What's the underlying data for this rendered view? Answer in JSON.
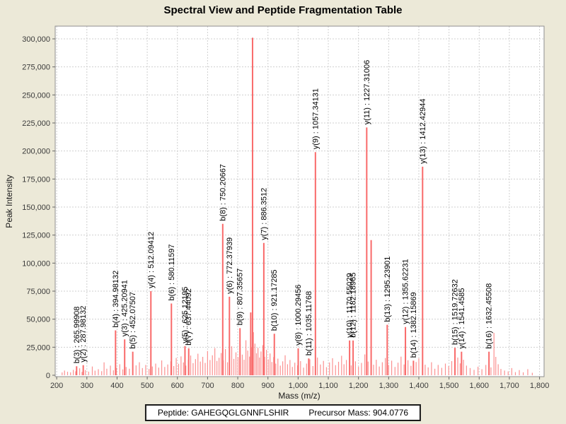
{
  "page": {
    "background": "#ece9d8"
  },
  "title": "Spectral View and Peptide Fragmentation Table",
  "footer": {
    "peptide_label": "Peptide: GAHEGQGLGNNFLSHIR",
    "precursor_label": "Precursor Mass: 904.0776"
  },
  "chart_data": {
    "type": "bar",
    "title": "Spectral View and Peptide Fragmentation Table",
    "xlabel": "Mass (m/z)",
    "ylabel": "Peak Intensity",
    "xlim": [
      195,
      1815
    ],
    "ylim": [
      0,
      310000
    ],
    "grid": true,
    "legend_position": "none",
    "colors": {
      "peak_labeled": "#f96a6a",
      "peak_noise": "#fb9090",
      "grid": "#cfcfcf",
      "plot_border": "#8f8f8f",
      "tick_text": "#3a3a3a",
      "label_text": "#000000",
      "plot_bg": "#ffffff"
    },
    "x_ticks": [
      {
        "v": 200,
        "label": "200"
      },
      {
        "v": 300,
        "label": "300"
      },
      {
        "v": 400,
        "label": "400"
      },
      {
        "v": 500,
        "label": "500"
      },
      {
        "v": 600,
        "label": "600"
      },
      {
        "v": 700,
        "label": "700"
      },
      {
        "v": 800,
        "label": "800"
      },
      {
        "v": 900,
        "label": "900"
      },
      {
        "v": 1000,
        "label": "1,000"
      },
      {
        "v": 1100,
        "label": "1,100"
      },
      {
        "v": 1200,
        "label": "1,200"
      },
      {
        "v": 1300,
        "label": "1,300"
      },
      {
        "v": 1400,
        "label": "1,400"
      },
      {
        "v": 1500,
        "label": "1,500"
      },
      {
        "v": 1600,
        "label": "1,600"
      },
      {
        "v": 1700,
        "label": "1,700"
      },
      {
        "v": 1800,
        "label": "1,800"
      }
    ],
    "y_ticks": [
      {
        "v": 0,
        "label": "0"
      },
      {
        "v": 25000,
        "label": "25,000"
      },
      {
        "v": 50000,
        "label": "50,000"
      },
      {
        "v": 75000,
        "label": "75,000"
      },
      {
        "v": 100000,
        "label": "100,000"
      },
      {
        "v": 125000,
        "label": "125,000"
      },
      {
        "v": 150000,
        "label": "150,000"
      },
      {
        "v": 175000,
        "label": "175,000"
      },
      {
        "v": 200000,
        "label": "200,000"
      },
      {
        "v": 225000,
        "label": "225,000"
      },
      {
        "v": 250000,
        "label": "250,000"
      },
      {
        "v": 275000,
        "label": "275,000"
      },
      {
        "v": 300000,
        "label": "300,000"
      }
    ],
    "labeled_peaks": [
      {
        "label": "b(3) : 265.99908",
        "mz": 265.99908,
        "intensity": 8000
      },
      {
        "label": "y(2) : 287.98132",
        "mz": 287.98132,
        "intensity": 9000
      },
      {
        "label": "b(4) : 394.98132",
        "mz": 394.98132,
        "intensity": 40000
      },
      {
        "label": "y(3) : 425.20941",
        "mz": 425.20941,
        "intensity": 32000
      },
      {
        "label": "b(5) : 452.07507",
        "mz": 452.07507,
        "intensity": 21000
      },
      {
        "label": "y(4) : 512.09412",
        "mz": 512.09412,
        "intensity": 75000
      },
      {
        "label": "b(6) : 580.11597",
        "mz": 580.11597,
        "intensity": 64000
      },
      {
        "label": "y(5) : 625.12195",
        "mz": 625.12195,
        "intensity": 26000
      },
      {
        "label": "b(7) : 637.44092",
        "mz": 637.44092,
        "intensity": 24000
      },
      {
        "label": "b(8) : 750.20667",
        "mz": 750.20667,
        "intensity": 135000
      },
      {
        "label": "y(6) : 772.37939",
        "mz": 772.37939,
        "intensity": 70000
      },
      {
        "label": "b(9) : 807.35657",
        "mz": 807.35657,
        "intensity": 42000
      },
      {
        "label": "y(7) : 886.3512",
        "mz": 886.3512,
        "intensity": 118000
      },
      {
        "label": "b(10) : 921.17285",
        "mz": 921.17285,
        "intensity": 37000
      },
      {
        "label": "y(8) : 1000.29456",
        "mz": 1000.29456,
        "intensity": 24000
      },
      {
        "label": "b(11) : 1035.11768",
        "mz": 1035.11768,
        "intensity": 15000
      },
      {
        "label": "y(9) : 1057.34131",
        "mz": 1057.34131,
        "intensity": 199000
      },
      {
        "label": "y(10) : 1170.55029",
        "mz": 1170.55029,
        "intensity": 31000
      },
      {
        "label": "b(12) : 1182.18965",
        "mz": 1182.18965,
        "intensity": 31000
      },
      {
        "label": "y(11) : 1227.31006",
        "mz": 1227.31006,
        "intensity": 221000
      },
      {
        "label": "b(13) : 1295.23901",
        "mz": 1295.23901,
        "intensity": 45000
      },
      {
        "label": "y(12) : 1355.62231",
        "mz": 1355.62231,
        "intensity": 43000
      },
      {
        "label": "b(14) : 1382.15869",
        "mz": 1382.15869,
        "intensity": 13000
      },
      {
        "label": "y(13) : 1412.42944",
        "mz": 1412.42944,
        "intensity": 186000
      },
      {
        "label": "b(15) : 1519.72632",
        "mz": 1519.72632,
        "intensity": 24500
      },
      {
        "label": "y(14) : 1541.4585",
        "mz": 1541.4585,
        "intensity": 21000
      },
      {
        "label": "b(16) : 1632.45508",
        "mz": 1632.45508,
        "intensity": 21000
      }
    ],
    "unlabeled_major_peaks": [
      [
        849,
        301000
      ],
      [
        1242,
        120500
      ]
    ],
    "noise_peaks": [
      [
        218,
        2500
      ],
      [
        226,
        4200
      ],
      [
        236,
        3100
      ],
      [
        246,
        2600
      ],
      [
        255,
        4800
      ],
      [
        263,
        3500
      ],
      [
        276,
        6200
      ],
      [
        284,
        3000
      ],
      [
        295,
        4600
      ],
      [
        306,
        3200
      ],
      [
        318,
        7800
      ],
      [
        327,
        4100
      ],
      [
        338,
        5400
      ],
      [
        349,
        3600
      ],
      [
        357,
        11500
      ],
      [
        366,
        5800
      ],
      [
        378,
        8600
      ],
      [
        388,
        4400
      ],
      [
        398,
        6600
      ],
      [
        409,
        9800
      ],
      [
        419,
        5200
      ],
      [
        430,
        7400
      ],
      [
        441,
        5800
      ],
      [
        452,
        4400
      ],
      [
        463,
        8800
      ],
      [
        474,
        11600
      ],
      [
        484,
        6400
      ],
      [
        495,
        9200
      ],
      [
        506,
        5600
      ],
      [
        517,
        7800
      ],
      [
        528,
        10400
      ],
      [
        538,
        6800
      ],
      [
        548,
        13200
      ],
      [
        558,
        7400
      ],
      [
        568,
        9600
      ],
      [
        578,
        12400
      ],
      [
        588,
        8200
      ],
      [
        596,
        15400
      ],
      [
        604,
        10200
      ],
      [
        612,
        16800
      ],
      [
        620,
        11400
      ],
      [
        628,
        8600
      ],
      [
        636,
        13800
      ],
      [
        644,
        17600
      ],
      [
        652,
        10800
      ],
      [
        660,
        14400
      ],
      [
        668,
        19200
      ],
      [
        676,
        12200
      ],
      [
        684,
        16400
      ],
      [
        692,
        11000
      ],
      [
        700,
        21600
      ],
      [
        708,
        13600
      ],
      [
        716,
        17800
      ],
      [
        724,
        24200
      ],
      [
        731,
        12800
      ],
      [
        738,
        15600
      ],
      [
        745,
        19800
      ],
      [
        752,
        13400
      ],
      [
        759,
        23400
      ],
      [
        766,
        11600
      ],
      [
        773,
        17200
      ],
      [
        780,
        25800
      ],
      [
        787,
        14600
      ],
      [
        794,
        20400
      ],
      [
        801,
        16200
      ],
      [
        808,
        27600
      ],
      [
        815,
        18400
      ],
      [
        821,
        13800
      ],
      [
        827,
        31200
      ],
      [
        833,
        22000
      ],
      [
        839,
        16600
      ],
      [
        843,
        56000
      ],
      [
        847,
        24800
      ],
      [
        852,
        38400
      ],
      [
        857,
        28200
      ],
      [
        862,
        19600
      ],
      [
        867,
        24400
      ],
      [
        872,
        15800
      ],
      [
        877,
        21200
      ],
      [
        883,
        26800
      ],
      [
        889,
        16400
      ],
      [
        895,
        22600
      ],
      [
        901,
        14200
      ],
      [
        907,
        19400
      ],
      [
        913,
        11800
      ],
      [
        919,
        16200
      ],
      [
        926,
        10400
      ],
      [
        933,
        14800
      ],
      [
        941,
        8600
      ],
      [
        949,
        12400
      ],
      [
        957,
        17800
      ],
      [
        965,
        9800
      ],
      [
        973,
        13600
      ],
      [
        981,
        7400
      ],
      [
        989,
        11200
      ],
      [
        998,
        8800
      ],
      [
        1008,
        12600
      ],
      [
        1018,
        6800
      ],
      [
        1028,
        10400
      ],
      [
        1039,
        14200
      ],
      [
        1049,
        8200
      ],
      [
        1064,
        15800
      ],
      [
        1074,
        9600
      ],
      [
        1084,
        12800
      ],
      [
        1094,
        7200
      ],
      [
        1104,
        11400
      ],
      [
        1114,
        15200
      ],
      [
        1124,
        9000
      ],
      [
        1134,
        12000
      ],
      [
        1144,
        17400
      ],
      [
        1152,
        9800
      ],
      [
        1160,
        13600
      ],
      [
        1176,
        8800
      ],
      [
        1190,
        12400
      ],
      [
        1200,
        7600
      ],
      [
        1210,
        11000
      ],
      [
        1221,
        18600
      ],
      [
        1232,
        12200
      ],
      [
        1250,
        9400
      ],
      [
        1259,
        13800
      ],
      [
        1269,
        7800
      ],
      [
        1279,
        11600
      ],
      [
        1289,
        15400
      ],
      [
        1300,
        9200
      ],
      [
        1310,
        13000
      ],
      [
        1321,
        7400
      ],
      [
        1331,
        11200
      ],
      [
        1341,
        16600
      ],
      [
        1351,
        9600
      ],
      [
        1364,
        13400
      ],
      [
        1374,
        8400
      ],
      [
        1391,
        11800
      ],
      [
        1400,
        15000
      ],
      [
        1421,
        9400
      ],
      [
        1431,
        7000
      ],
      [
        1442,
        11600
      ],
      [
        1453,
        5800
      ],
      [
        1464,
        9200
      ],
      [
        1476,
        6600
      ],
      [
        1488,
        10400
      ],
      [
        1499,
        8200
      ],
      [
        1509,
        12600
      ],
      [
        1529,
        15800
      ],
      [
        1537,
        10600
      ],
      [
        1548,
        13800
      ],
      [
        1558,
        8600
      ],
      [
        1570,
        6400
      ],
      [
        1583,
        4800
      ],
      [
        1596,
        7600
      ],
      [
        1609,
        5400
      ],
      [
        1622,
        9200
      ],
      [
        1639,
        7000
      ],
      [
        1649,
        37800
      ],
      [
        1655,
        16400
      ],
      [
        1663,
        9800
      ],
      [
        1672,
        5600
      ],
      [
        1684,
        4200
      ],
      [
        1696,
        3400
      ],
      [
        1708,
        6400
      ],
      [
        1720,
        2800
      ],
      [
        1733,
        4600
      ],
      [
        1746,
        2600
      ],
      [
        1761,
        5400
      ],
      [
        1776,
        2200
      ]
    ]
  }
}
